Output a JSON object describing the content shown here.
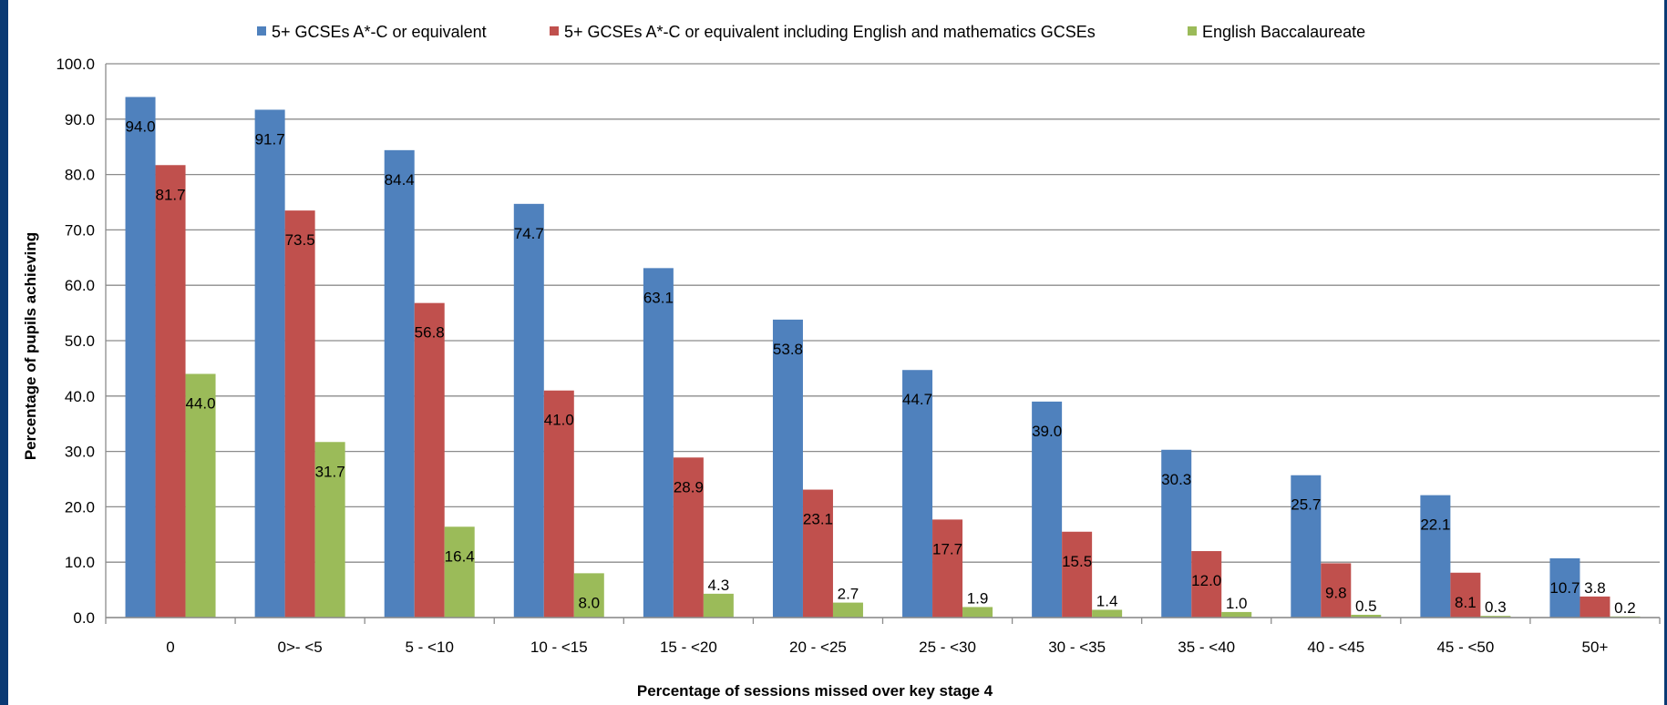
{
  "chart_data": {
    "type": "bar",
    "title": "",
    "xlabel": "Percentage of sessions missed over key stage 4",
    "ylabel": "Percentage of pupils achieving",
    "ylim": [
      0,
      100
    ],
    "yticks": [
      "0.0",
      "10.0",
      "20.0",
      "30.0",
      "40.0",
      "50.0",
      "60.0",
      "70.0",
      "80.0",
      "90.0",
      "100.0"
    ],
    "grid": true,
    "legend_position": "top",
    "categories": [
      "0",
      "0>- <5",
      "5 - <10",
      "10 - <15",
      "15 - <20",
      "20 - <25",
      "25 - <30",
      "30 - <35",
      "35 - <40",
      "40 - <45",
      "45 - <50",
      "50+"
    ],
    "series": [
      {
        "name": "5+ GCSEs A*-C or equivalent",
        "color": "#4f81bd",
        "values": [
          94.0,
          91.7,
          84.4,
          74.7,
          63.1,
          53.8,
          44.7,
          39.0,
          30.3,
          25.7,
          22.1,
          10.7
        ],
        "labels": [
          "94.0",
          "91.7",
          "84.4",
          "74.7",
          "63.1",
          "53.8",
          "44.7",
          "39.0",
          "30.3",
          "25.7",
          "22.1",
          "10.7"
        ]
      },
      {
        "name": "5+ GCSEs A*-C or equivalent including English and mathematics GCSEs",
        "color": "#c0504d",
        "values": [
          81.7,
          73.5,
          56.8,
          41.0,
          28.9,
          23.1,
          17.7,
          15.5,
          12.0,
          9.8,
          8.1,
          3.8
        ],
        "labels": [
          "81.7",
          "73.5",
          "56.8",
          "41.0",
          "28.9",
          "23.1",
          "17.7",
          "15.5",
          "12.0",
          "9.8",
          "8.1",
          "3.8"
        ]
      },
      {
        "name": "English Baccalaureate",
        "color": "#9bbb59",
        "values": [
          44.0,
          31.7,
          16.4,
          8.0,
          4.3,
          2.7,
          1.9,
          1.4,
          1.0,
          0.5,
          0.3,
          0.2
        ],
        "labels": [
          "44.0",
          "31.7",
          "16.4",
          "8.0",
          "4.3",
          "2.7",
          "1.9",
          "1.4",
          "1.0",
          "0.5",
          "0.3",
          "0.2"
        ]
      }
    ]
  }
}
